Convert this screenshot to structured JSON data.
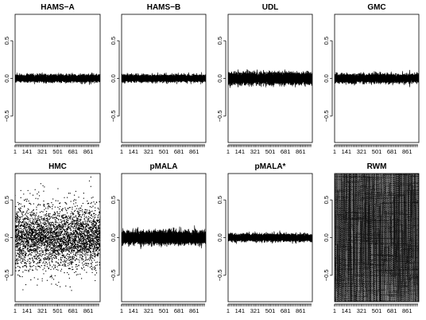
{
  "chart_data": [
    {
      "type": "line",
      "title": "HAMS−A",
      "x_tick_labels": [
        "1",
        "141",
        "321",
        "501",
        "681",
        "861"
      ],
      "x_ticks": [
        1,
        141,
        321,
        501,
        681,
        861
      ],
      "y_tick_labels": [
        "0.5",
        "0.0",
        "−0.5"
      ],
      "y_ticks": [
        0.5,
        0.0,
        -0.5
      ],
      "xlim": [
        1,
        1000
      ],
      "ylim": [
        -0.85,
        0.85
      ],
      "series_count": 60,
      "center": 0.0,
      "spread": 0.05,
      "style": "lines",
      "color": "#000000"
    },
    {
      "type": "line",
      "title": "HAMS−B",
      "x_tick_labels": [
        "1",
        "141",
        "321",
        "501",
        "681",
        "861"
      ],
      "x_ticks": [
        1,
        141,
        321,
        501,
        681,
        861
      ],
      "y_tick_labels": [
        "0.5",
        "0.0",
        "−0.5"
      ],
      "y_ticks": [
        0.5,
        0.0,
        -0.5
      ],
      "xlim": [
        1,
        1000
      ],
      "ylim": [
        -0.85,
        0.85
      ],
      "series_count": 60,
      "center": 0.0,
      "spread": 0.05,
      "style": "lines",
      "color": "#000000"
    },
    {
      "type": "line",
      "title": "UDL",
      "x_tick_labels": [
        "1",
        "141",
        "321",
        "501",
        "681",
        "861"
      ],
      "x_ticks": [
        1,
        141,
        321,
        501,
        681,
        861
      ],
      "y_tick_labels": [
        "0.5",
        "0.0",
        "−0.5"
      ],
      "y_ticks": [
        0.5,
        0.0,
        -0.5
      ],
      "xlim": [
        1,
        1000
      ],
      "ylim": [
        -0.85,
        0.85
      ],
      "series_count": 60,
      "center": 0.0,
      "spread": 0.08,
      "style": "lines",
      "color": "#000000"
    },
    {
      "type": "line",
      "title": "GMC",
      "x_tick_labels": [
        "1",
        "141",
        "321",
        "501",
        "681",
        "861"
      ],
      "x_ticks": [
        1,
        141,
        321,
        501,
        681,
        861
      ],
      "y_tick_labels": [
        "0.5",
        "0.0",
        "−0.5"
      ],
      "y_ticks": [
        0.5,
        0.0,
        -0.5
      ],
      "xlim": [
        1,
        1000
      ],
      "ylim": [
        -0.85,
        0.85
      ],
      "series_count": 60,
      "center": 0.0,
      "spread": 0.06,
      "style": "lines",
      "color": "#000000"
    },
    {
      "type": "scatter",
      "title": "HMC",
      "x_tick_labels": [
        "1",
        "141",
        "321",
        "501",
        "681",
        "861"
      ],
      "x_ticks": [
        1,
        141,
        321,
        501,
        681,
        861
      ],
      "y_tick_labels": [
        "0.5",
        "0.0",
        "−0.5"
      ],
      "y_ticks": [
        0.5,
        0.0,
        -0.5
      ],
      "xlim": [
        1,
        1000
      ],
      "ylim": [
        -0.85,
        0.85
      ],
      "series_count": 30,
      "center": 0.0,
      "spread": 0.22,
      "style": "points",
      "color": "#000000"
    },
    {
      "type": "line",
      "title": "pMALA",
      "x_tick_labels": [
        "1",
        "141",
        "321",
        "501",
        "681",
        "861"
      ],
      "x_ticks": [
        1,
        141,
        321,
        501,
        681,
        861
      ],
      "y_tick_labels": [
        "0.5",
        "0.0",
        "−0.5"
      ],
      "y_ticks": [
        0.5,
        0.0,
        -0.5
      ],
      "xlim": [
        1,
        1000
      ],
      "ylim": [
        -0.85,
        0.85
      ],
      "series_count": 60,
      "center": 0.0,
      "spread": 0.09,
      "style": "lines",
      "color": "#000000"
    },
    {
      "type": "line",
      "title": "pMALA*",
      "x_tick_labels": [
        "1",
        "141",
        "321",
        "501",
        "681",
        "861"
      ],
      "x_ticks": [
        1,
        141,
        321,
        501,
        681,
        861
      ],
      "y_tick_labels": [
        "0.5",
        "0.0",
        "−0.5"
      ],
      "y_ticks": [
        0.5,
        0.0,
        -0.5
      ],
      "xlim": [
        1,
        1000
      ],
      "ylim": [
        -0.85,
        0.85
      ],
      "series_count": 60,
      "center": 0.0,
      "spread": 0.05,
      "style": "lines",
      "color": "#000000"
    },
    {
      "type": "line",
      "title": "RWM",
      "x_tick_labels": [
        "1",
        "141",
        "321",
        "501",
        "681",
        "861"
      ],
      "x_ticks": [
        1,
        141,
        321,
        501,
        681,
        861
      ],
      "y_tick_labels": [
        "0.5",
        "0.0",
        "−0.5"
      ],
      "y_ticks": [
        0.5,
        0.0,
        -0.5
      ],
      "xlim": [
        1,
        1000
      ],
      "ylim": [
        -0.85,
        0.85
      ],
      "series_count": 80,
      "center": 0.0,
      "spread": 1.2,
      "style": "flat",
      "color": "#000000"
    }
  ]
}
